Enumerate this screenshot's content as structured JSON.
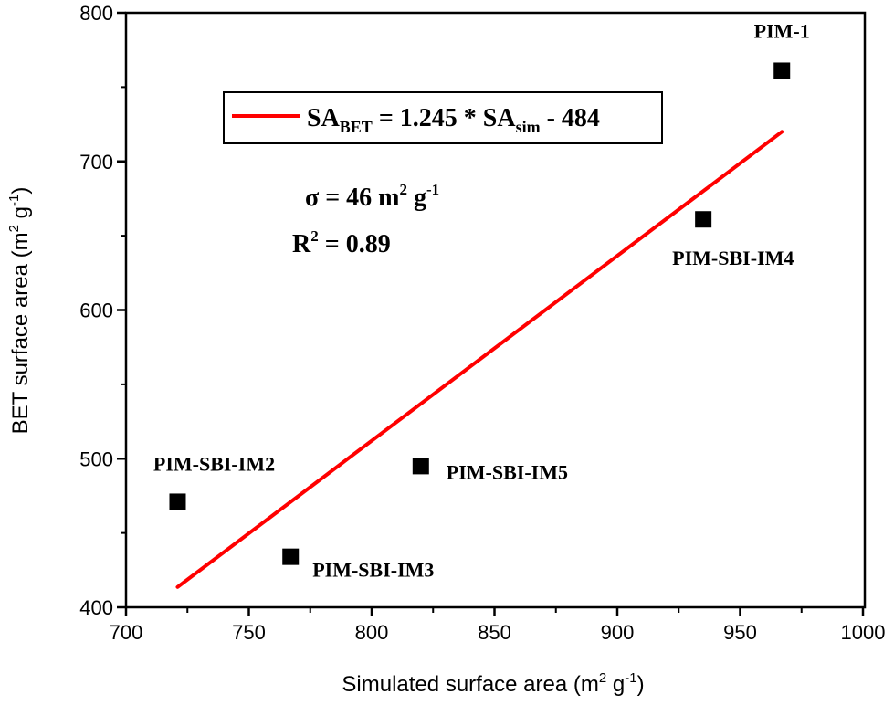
{
  "chart_data": {
    "type": "scatter",
    "title": "",
    "xlabel": "Simulated surface area (m",
    "xlabel_sup": "2",
    "xlabel_tail": " g",
    "xlabel_sup2": "-1",
    "xlabel_end": ")",
    "ylabel": "BET surface area (m",
    "ylabel_sup": "2",
    "ylabel_tail": " g",
    "ylabel_sup2": "-1",
    "ylabel_end": ")",
    "xlim": [
      700,
      1000
    ],
    "ylim": [
      400,
      800
    ],
    "xticks": [
      700,
      750,
      800,
      850,
      900,
      950,
      1000
    ],
    "yticks": [
      400,
      500,
      600,
      700,
      800
    ],
    "grid": false,
    "points": [
      {
        "label": "PIM-1",
        "x": 967,
        "y": 761
      },
      {
        "label": "PIM-SBI-IM4",
        "x": 935,
        "y": 661
      },
      {
        "label": "PIM-SBI-IM5",
        "x": 820,
        "y": 495
      },
      {
        "label": "PIM-SBI-IM3",
        "x": 767,
        "y": 434
      },
      {
        "label": "PIM-SBI-IM2",
        "x": 721,
        "y": 471
      }
    ],
    "fit": {
      "slope": 1.245,
      "intercept": -484,
      "x_range": [
        721,
        967
      ],
      "color": "#ff0000"
    },
    "legend": {
      "placement": "top-center",
      "text_a": "SA",
      "sub_a": "BET",
      "text_b": " = 1.245 * SA",
      "sub_b": "sim",
      "text_c": " - 484"
    },
    "annotations": {
      "sigma": "σ = 46 m",
      "sigma_sup": "2",
      "sigma_tail": " g",
      "sigma_sup2": "-1",
      "r2": "R",
      "r2_sup": "2",
      "r2_tail": " = 0.89"
    },
    "marker_color": "#000000"
  }
}
